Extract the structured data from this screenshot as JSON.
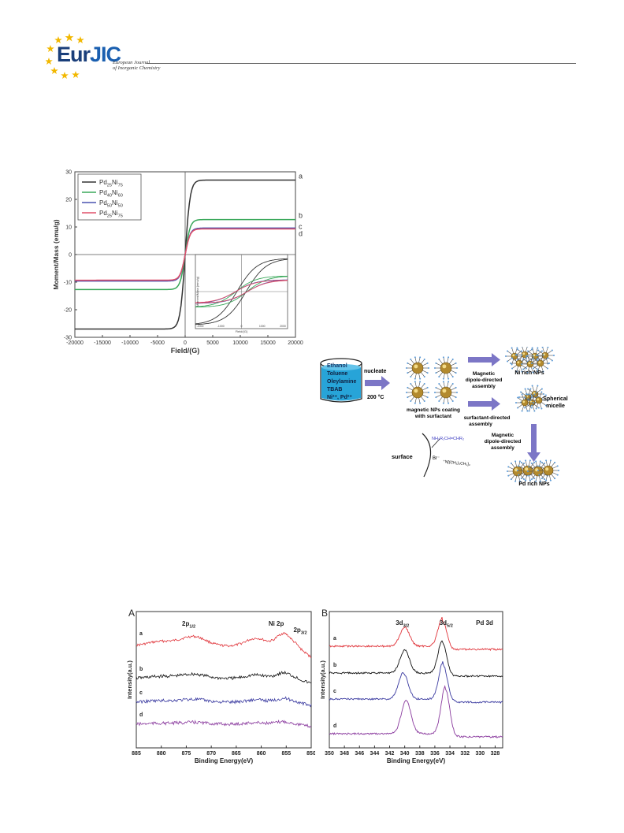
{
  "header": {
    "logo_main": "Eur",
    "logo_jic": "JIC",
    "logo_sub_line1": "European Journal",
    "logo_sub_line2": "of Inorganic Chemistry"
  },
  "colors": {
    "brand_blue": "#1a3e7a",
    "star_gold": "#f2b800",
    "arrow_violet": "#7c76c6"
  },
  "figure1": {
    "chart_data": {
      "type": "line",
      "xlabel": "Field/(G)",
      "ylabel": "Moment/Mass (emu/g)",
      "xlim": [
        -20000,
        20000
      ],
      "ylim": [
        -30,
        30
      ],
      "xticks": [
        "-20000",
        "-15000",
        "-10000",
        "-5000",
        "0",
        "5000",
        "10000",
        "15000",
        "20000"
      ],
      "yticks": [
        "30",
        "20",
        "10",
        "0",
        "-10",
        "-20",
        "-30"
      ],
      "legend_position": "top-left",
      "series": [
        {
          "legend": [
            "Pd",
            "25",
            "Ni",
            "75"
          ],
          "curve_label": "a",
          "color": "#333333",
          "ms": 27,
          "hc": 250
        },
        {
          "legend": [
            "Pd",
            "40",
            "Ni",
            "60"
          ],
          "curve_label": "b",
          "color": "#3aa85a",
          "ms": 12.7,
          "hc": 300
        },
        {
          "legend": [
            "Pd",
            "50",
            "Ni",
            "50"
          ],
          "curve_label": "c",
          "color": "#4a54b0",
          "ms": 9.6,
          "hc": 320
        },
        {
          "legend": [
            "Pd",
            "25",
            "Ni",
            "75"
          ],
          "curve_label": "d",
          "color": "#e0506a",
          "ms": 9.3,
          "hc": 320
        }
      ],
      "inset": {
        "xlabel": "Field/(G)",
        "ylabel": "Moment/Mass (emu/g)",
        "xticks": [
          "-2000",
          "-1000",
          "0",
          "1000",
          "2000"
        ]
      }
    }
  },
  "scheme": {
    "beaker_lines": [
      "Ethanol",
      "Toluene",
      "Oleylamine",
      "TBAB",
      "Ni²⁺, Pd²⁺"
    ],
    "step1_top": "nucleate",
    "step1_bottom": "200 °C",
    "coated_label_1": "magnetic NPs coating",
    "coated_label_2": "with surfactant",
    "upper_arrow_lines": [
      "Magnetic",
      "dipole-directed",
      "assembly"
    ],
    "ni_rich": "Ni rich NPs",
    "lower_arrow_lines": [
      "surfactant-directed",
      "assembly"
    ],
    "micelle_lines": [
      "Spherical",
      "micelle"
    ],
    "down_arrow_lines": [
      "Magnetic",
      "dipole-directed",
      "assembly"
    ],
    "pd_rich": "Pd rich NPs",
    "surface_label": "surface",
    "amine_label": "NH₂R₁CH=CHR₂",
    "br_label": "Br⁻",
    "ammonium_label": "⁺N[(CH₂)₃CH₃]₄"
  },
  "figure3": {
    "chart_data": [
      {
        "type": "line",
        "panel": "A",
        "xlabel": "Binding Energy(eV)",
        "ylabel": "Intensity(a.u.)",
        "xlim": [
          885,
          850
        ],
        "xticks": [
          "885",
          "880",
          "875",
          "870",
          "865",
          "860",
          "855",
          "850"
        ],
        "annotations": {
          "p12": [
            "2p",
            "1/2"
          ],
          "ni2p": "Ni 2p",
          "p32": [
            "2p",
            "3/2"
          ]
        },
        "series": [
          {
            "label": "a",
            "color": "#e0343a"
          },
          {
            "label": "b",
            "color": "#111111"
          },
          {
            "label": "c",
            "color": "#3a3aa0"
          },
          {
            "label": "d",
            "color": "#8a3a9e"
          }
        ]
      },
      {
        "type": "line",
        "panel": "B",
        "xlabel": "Binding Energy(eV)",
        "ylabel": "Intensity(a.u.)",
        "xlim": [
          350,
          327
        ],
        "xticks": [
          "350",
          "348",
          "346",
          "344",
          "342",
          "340",
          "338",
          "336",
          "334",
          "332",
          "330",
          "328"
        ],
        "annotations": {
          "d32": [
            "3d",
            "3/2"
          ],
          "d52": [
            "3d",
            "5/2"
          ],
          "pd3d": "Pd 3d"
        },
        "series": [
          {
            "label": "a",
            "color": "#e0343a",
            "peak1": 340.0,
            "peak2": 335.0
          },
          {
            "label": "b",
            "color": "#111111",
            "peak1": 340.0,
            "peak2": 335.0
          },
          {
            "label": "c",
            "color": "#3a3aa0",
            "peak1": 340.2,
            "peak2": 334.9
          },
          {
            "label": "d",
            "color": "#8a3a9e",
            "peak1": 339.8,
            "peak2": 334.6
          }
        ]
      }
    ]
  }
}
